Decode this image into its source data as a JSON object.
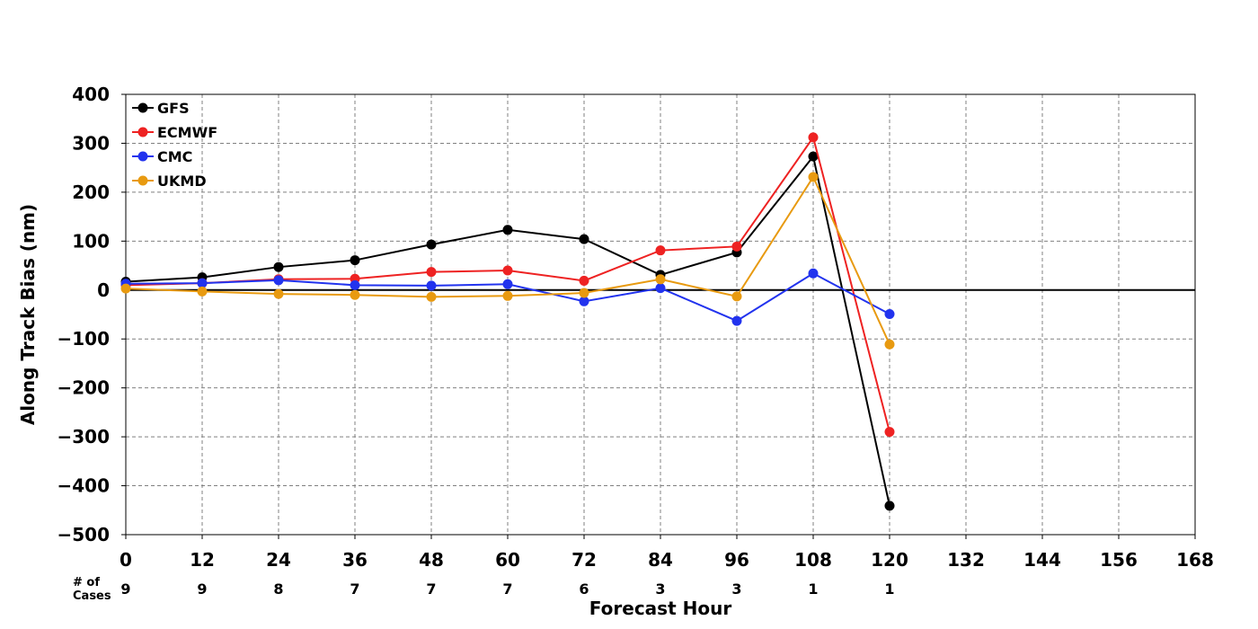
{
  "chart_data": {
    "type": "line",
    "ylabel": "Along Track Bias (nm)",
    "xlabel": "Forecast Hour",
    "xlim": [
      0,
      168
    ],
    "ylim": [
      -500,
      400
    ],
    "x_ticks": [
      0,
      12,
      24,
      36,
      48,
      60,
      72,
      84,
      96,
      108,
      120,
      132,
      144,
      156,
      168
    ],
    "y_ticks": [
      400,
      300,
      200,
      100,
      0,
      -100,
      -200,
      -300,
      -400,
      -500
    ],
    "grid": true,
    "zero_line": true,
    "legend_position": "top-left",
    "cases_label": "# of\nCases",
    "cases": [
      {
        "hour": 0,
        "count": "9"
      },
      {
        "hour": 12,
        "count": "9"
      },
      {
        "hour": 24,
        "count": "8"
      },
      {
        "hour": 36,
        "count": "7"
      },
      {
        "hour": 48,
        "count": "7"
      },
      {
        "hour": 60,
        "count": "7"
      },
      {
        "hour": 72,
        "count": "6"
      },
      {
        "hour": 84,
        "count": "3"
      },
      {
        "hour": 96,
        "count": "3"
      },
      {
        "hour": 108,
        "count": "1"
      },
      {
        "hour": 120,
        "count": "1"
      }
    ],
    "x": [
      0,
      12,
      24,
      36,
      48,
      60,
      72,
      84,
      96,
      108,
      120
    ],
    "series": [
      {
        "name": "GFS",
        "color": "#000000",
        "values": [
          17,
          26,
          47,
          61,
          93,
          123,
          104,
          31,
          77,
          273,
          -441
        ]
      },
      {
        "name": "ECMWF",
        "color": "#ee2222",
        "values": [
          10,
          14,
          22,
          23,
          37,
          40,
          19,
          81,
          89,
          312,
          -290
        ]
      },
      {
        "name": "CMC",
        "color": "#2233ee",
        "values": [
          13,
          14,
          20,
          10,
          9,
          12,
          -23,
          4,
          -63,
          34,
          -49
        ]
      },
      {
        "name": "UKMD",
        "color": "#e89a10",
        "values": [
          3,
          -3,
          -8,
          -10,
          -14,
          -12,
          -6,
          22,
          -13,
          231,
          -111
        ]
      }
    ]
  }
}
